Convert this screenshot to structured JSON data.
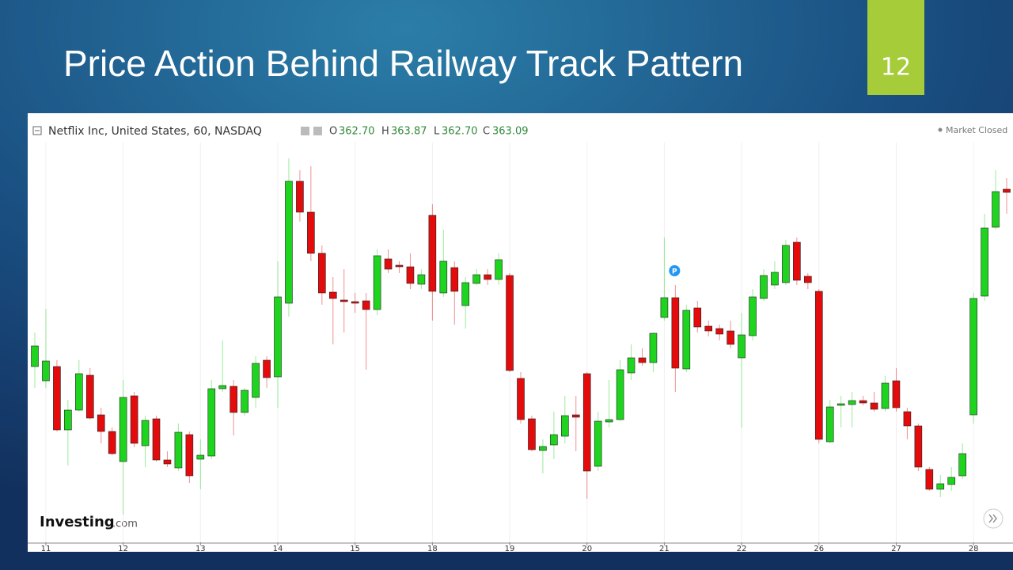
{
  "slide": {
    "title": "Price Action Behind Railway Track Pattern",
    "number": "12"
  },
  "chart_data": {
    "type": "candlestick",
    "title": "Netflix Inc, United States, 60, NASDAQ",
    "quote": [
      {
        "key": "O",
        "value": "362.70"
      },
      {
        "key": "H",
        "value": "363.87"
      },
      {
        "key": "L",
        "value": "362.70"
      },
      {
        "key": "C",
        "value": "363.09"
      }
    ],
    "status": "Market Closed",
    "marker_label": "P",
    "brand": {
      "name": "Investing",
      "suffix": ".com"
    },
    "up_color": "#1ed41e",
    "down_color": "#e30b0b",
    "ylim": [
      341,
      368
    ],
    "categories": [
      null,
      "11",
      null,
      null,
      null,
      null,
      null,
      null,
      "12",
      null,
      null,
      null,
      null,
      null,
      null,
      "13",
      null,
      null,
      null,
      null,
      null,
      null,
      "14",
      null,
      null,
      null,
      null,
      null,
      null,
      "15",
      null,
      null,
      null,
      null,
      null,
      null,
      "18",
      null,
      null,
      null,
      null,
      null,
      null,
      "19",
      null,
      null,
      null,
      null,
      null,
      null,
      "20",
      null,
      null,
      null,
      null,
      null,
      null,
      "21",
      null,
      null,
      null,
      null,
      null,
      null,
      "22",
      null,
      null,
      null,
      null,
      null,
      null,
      "26",
      null,
      null,
      null,
      null,
      null,
      null,
      "27",
      null,
      null,
      null,
      null,
      null,
      null,
      "28",
      null,
      null,
      null
    ],
    "open": [
      352.1,
      351.2,
      352.1,
      348.1,
      349.35,
      351.55,
      349.05,
      348.0,
      346.1,
      350.25,
      347.1,
      348.8,
      346.2,
      345.7,
      347.8,
      346.25,
      346.45,
      350.7,
      350.85,
      349.2,
      350.15,
      352.5,
      351.45,
      356.1,
      363.8,
      361.85,
      359.25,
      356.8,
      356.3,
      356.2,
      356.25,
      355.7,
      358.9,
      358.5,
      358.4,
      357.3,
      361.65,
      356.75,
      358.35,
      355.95,
      357.35,
      357.9,
      357.6,
      357.85,
      351.35,
      348.8,
      346.8,
      347.15,
      347.7,
      349.05,
      351.65,
      345.8,
      348.6,
      348.75,
      351.7,
      352.65,
      352.35,
      355.2,
      356.45,
      351.95,
      355.8,
      354.65,
      354.5,
      354.35,
      352.65,
      354.05,
      356.4,
      357.25,
      357.4,
      359.95,
      357.8,
      356.85,
      347.35,
      349.65,
      349.7,
      349.95,
      349.8,
      349.45,
      351.2,
      349.25,
      348.35,
      345.6,
      344.35,
      344.65,
      345.2,
      349.05,
      356.55,
      360.9,
      363.3
    ],
    "high": [
      354.25,
      355.75,
      352.5,
      350.0,
      352.5,
      352.0,
      349.5,
      348.25,
      351.25,
      350.5,
      349.0,
      349.0,
      346.75,
      348.5,
      348.0,
      347.5,
      351.25,
      353.75,
      351.25,
      350.75,
      352.75,
      352.75,
      358.75,
      365.25,
      364.5,
      364.75,
      359.75,
      357.75,
      358.25,
      356.75,
      356.75,
      359.5,
      359.5,
      358.75,
      359.25,
      358.25,
      362.35,
      360.75,
      358.75,
      357.75,
      358.25,
      358.25,
      359.25,
      358.0,
      351.75,
      349.0,
      347.5,
      349.25,
      350.25,
      350.25,
      351.75,
      349.25,
      351.25,
      352.5,
      353.5,
      353.25,
      354.25,
      360.25,
      357.25,
      356.0,
      356.25,
      355.0,
      354.75,
      355.0,
      355.5,
      357.0,
      358.25,
      358.75,
      360.1,
      360.25,
      358.0,
      357.0,
      350.0,
      350.25,
      350.5,
      350.25,
      350.5,
      351.5,
      352.0,
      349.5,
      348.5,
      345.75,
      345.25,
      345.75,
      347.25,
      356.75,
      361.75,
      364.5,
      364.0
    ],
    "low": [
      350.75,
      350.75,
      348.0,
      345.85,
      349.25,
      348.75,
      347.25,
      346.5,
      342.75,
      347.0,
      345.75,
      346.1,
      345.75,
      345.5,
      344.75,
      344.35,
      346.25,
      350.5,
      347.75,
      349.0,
      349.5,
      350.75,
      349.5,
      355.25,
      361.25,
      358.75,
      356.0,
      353.5,
      354.25,
      355.5,
      351.9,
      355.35,
      358.0,
      358.0,
      357.0,
      357.0,
      355.0,
      356.5,
      354.75,
      354.5,
      357.25,
      357.25,
      357.25,
      351.75,
      348.5,
      346.75,
      345.35,
      346.25,
      347.25,
      346.75,
      343.75,
      345.5,
      348.25,
      348.65,
      351.25,
      352.15,
      351.75,
      355.0,
      350.5,
      351.75,
      354.25,
      354.0,
      353.75,
      353.25,
      348.25,
      353.75,
      356.25,
      357.0,
      357.25,
      357.25,
      357.0,
      347.25,
      347.25,
      348.25,
      348.25,
      349.65,
      349.25,
      349.25,
      349.25,
      347.5,
      345.5,
      344.25,
      343.85,
      344.25,
      345.0,
      348.5,
      356.25,
      360.75,
      361.75
    ],
    "close": [
      353.4,
      352.45,
      348.1,
      349.35,
      351.65,
      348.85,
      348.0,
      346.6,
      350.15,
      347.25,
      348.7,
      346.2,
      345.95,
      347.95,
      345.2,
      346.5,
      350.7,
      350.9,
      349.2,
      350.6,
      352.3,
      351.4,
      356.5,
      363.8,
      361.85,
      359.25,
      356.75,
      356.4,
      356.2,
      356.1,
      355.7,
      359.1,
      358.25,
      358.4,
      357.35,
      357.9,
      356.85,
      358.75,
      356.85,
      357.4,
      357.9,
      357.6,
      358.85,
      351.85,
      348.75,
      346.85,
      347.05,
      347.8,
      349.0,
      348.9,
      345.5,
      348.65,
      348.75,
      351.9,
      352.65,
      352.35,
      354.2,
      356.45,
      352.0,
      355.65,
      354.6,
      354.35,
      354.15,
      353.5,
      354.1,
      356.5,
      357.85,
      358.05,
      359.75,
      357.55,
      357.4,
      347.5,
      349.55,
      349.75,
      349.95,
      349.8,
      349.4,
      351.05,
      349.5,
      348.35,
      345.75,
      344.35,
      344.7,
      345.1,
      346.6,
      356.4,
      360.85,
      363.15,
      363.1
    ]
  }
}
